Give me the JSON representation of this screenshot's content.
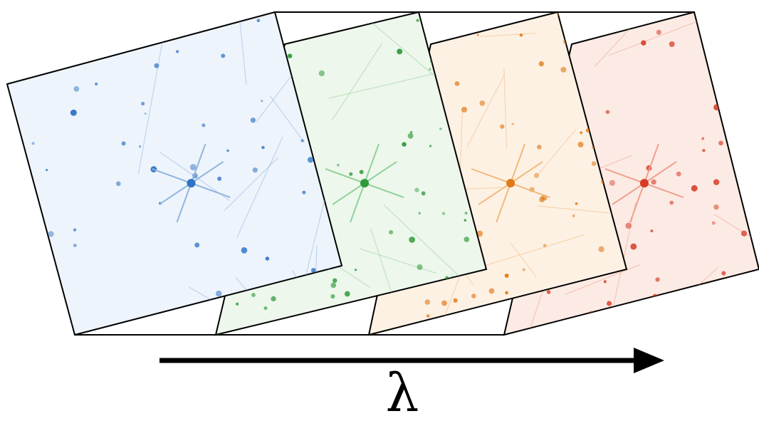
{
  "axis": {
    "label": "λ"
  },
  "frames": [
    {
      "name": "blue",
      "tint": "#eef4fb",
      "star_color": "#2f73c4",
      "spike_color": "#8fb5e0"
    },
    {
      "name": "green",
      "tint": "#eef7ec",
      "star_color": "#2e9a3a",
      "spike_color": "#8fd19a"
    },
    {
      "name": "orange",
      "tint": "#fdf1e4",
      "star_color": "#e07a18",
      "spike_color": "#f2b97c"
    },
    {
      "name": "red",
      "tint": "#fcebe4",
      "star_color": "#d63a24",
      "spike_color": "#f0a08e"
    }
  ],
  "stroke_color": "#000000"
}
